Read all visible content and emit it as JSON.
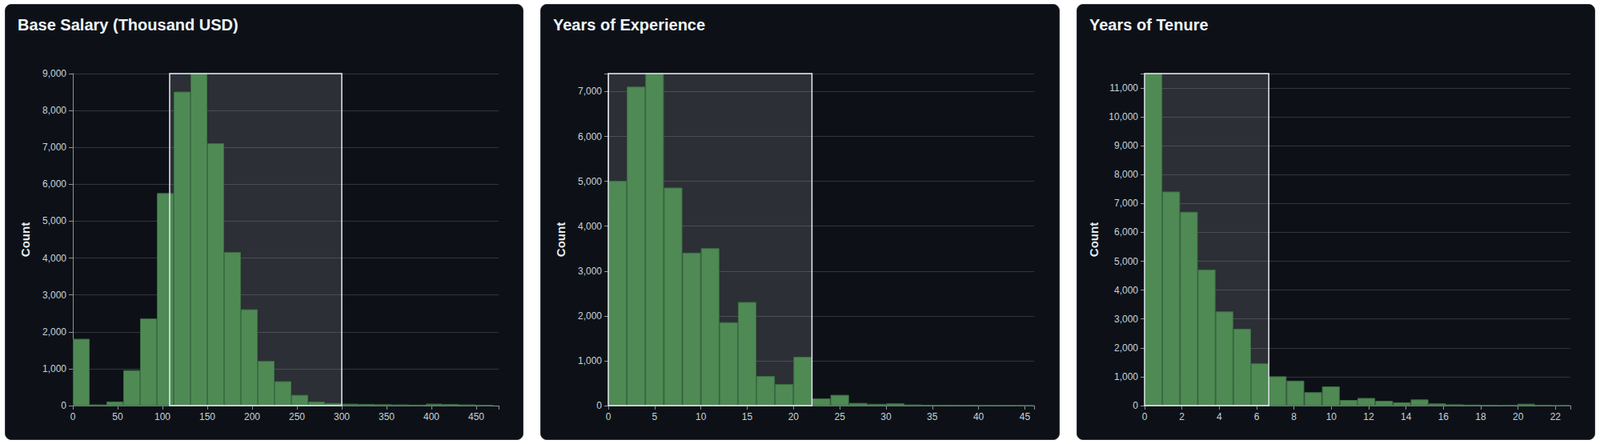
{
  "chart_data": [
    {
      "type": "histogram",
      "title": "Base Salary (Thousand USD)",
      "y_label": "Count",
      "bins": [
        0,
        18.75,
        37.5,
        56.25,
        75,
        93.75,
        112.5,
        131.25,
        150,
        168.75,
        187.5,
        206.25,
        225,
        243.75,
        262.5,
        281.25,
        300,
        318.75,
        337.5,
        356.25,
        375,
        393.75,
        412.5,
        431.25,
        450,
        468.75
      ],
      "values": [
        1800,
        20,
        100,
        950,
        2350,
        5750,
        8500,
        9000,
        7100,
        4150,
        2600,
        1200,
        650,
        280,
        100,
        60,
        40,
        30,
        25,
        20,
        15,
        40,
        30,
        20,
        10
      ],
      "color": "#4f8a55",
      "xlim": [
        0,
        475
      ],
      "xticks": [
        0,
        50,
        100,
        150,
        200,
        250,
        300,
        350,
        400,
        450
      ],
      "ylim": [
        0,
        9000
      ],
      "yticks": [
        0,
        {
          "value": 1000,
          "label": "1,000"
        },
        {
          "value": 2000,
          "label": "2,000"
        },
        {
          "value": 3000,
          "label": "3,000"
        },
        {
          "value": 4000,
          "label": "4,000"
        },
        {
          "value": 5000,
          "label": "5,000"
        },
        {
          "value": 6000,
          "label": "6,000"
        },
        {
          "value": 7000,
          "label": "7,000"
        },
        {
          "value": 8000,
          "label": "8,000"
        },
        {
          "value": 9000,
          "label": "9,000"
        }
      ],
      "grid": true,
      "selection": [
        108,
        300
      ]
    },
    {
      "type": "histogram",
      "title": "Years of Experience",
      "y_label": "Count",
      "bins": [
        0,
        2,
        4,
        6,
        8,
        10,
        12,
        14,
        16,
        18,
        20,
        22,
        24,
        26,
        28,
        30,
        32,
        34,
        36,
        38,
        40,
        42,
        44,
        46
      ],
      "values": [
        5000,
        7100,
        7400,
        4850,
        3400,
        3500,
        1850,
        2300,
        650,
        470,
        1080,
        150,
        230,
        50,
        30,
        40,
        15,
        10,
        10,
        8,
        5,
        5,
        3
      ],
      "color": "#4f8a55",
      "xlim": [
        0,
        46
      ],
      "xticks": [
        0,
        5,
        10,
        15,
        20,
        25,
        30,
        35,
        40,
        45
      ],
      "ylim": [
        0,
        7400
      ],
      "yticks": [
        0,
        {
          "value": 1000,
          "label": "1,000"
        },
        {
          "value": 2000,
          "label": "2,000"
        },
        {
          "value": 3000,
          "label": "3,000"
        },
        {
          "value": 4000,
          "label": "4,000"
        },
        {
          "value": 5000,
          "label": "5,000"
        },
        {
          "value": 6000,
          "label": "6,000"
        },
        {
          "value": 7000,
          "label": "7,000"
        }
      ],
      "grid": true,
      "selection": [
        0,
        22
      ]
    },
    {
      "type": "histogram",
      "title": "Years of Tenure",
      "y_label": "Count",
      "bins": [
        0,
        0.95,
        1.9,
        2.85,
        3.8,
        4.75,
        5.7,
        6.65,
        7.6,
        8.55,
        9.5,
        10.45,
        11.4,
        12.35,
        13.3,
        14.25,
        15.2,
        16.15,
        17.1,
        18.05,
        19,
        19.95,
        20.9,
        21.85,
        22.8
      ],
      "values": [
        11500,
        7400,
        6700,
        4700,
        3250,
        2650,
        1450,
        1000,
        850,
        450,
        650,
        180,
        250,
        150,
        100,
        200,
        60,
        30,
        20,
        15,
        10,
        50,
        10,
        5
      ],
      "color": "#4f8a55",
      "xlim": [
        0,
        22.8
      ],
      "xticks": [
        0,
        2,
        4,
        6,
        8,
        10,
        12,
        14,
        16,
        18,
        20,
        22
      ],
      "ylim": [
        0,
        11500
      ],
      "yticks": [
        0,
        {
          "value": 1000,
          "label": "1,000"
        },
        {
          "value": 2000,
          "label": "2,000"
        },
        {
          "value": 3000,
          "label": "3,000"
        },
        {
          "value": 4000,
          "label": "4,000"
        },
        {
          "value": 5000,
          "label": "5,000"
        },
        {
          "value": 6000,
          "label": "6,000"
        },
        {
          "value": 7000,
          "label": "7,000"
        },
        {
          "value": 8000,
          "label": "8,000"
        },
        {
          "value": 9000,
          "label": "9,000"
        },
        {
          "value": 10000,
          "label": "10,000"
        },
        {
          "value": 11000,
          "label": "11,000"
        }
      ],
      "grid": true,
      "selection": [
        0,
        6.65
      ]
    }
  ]
}
